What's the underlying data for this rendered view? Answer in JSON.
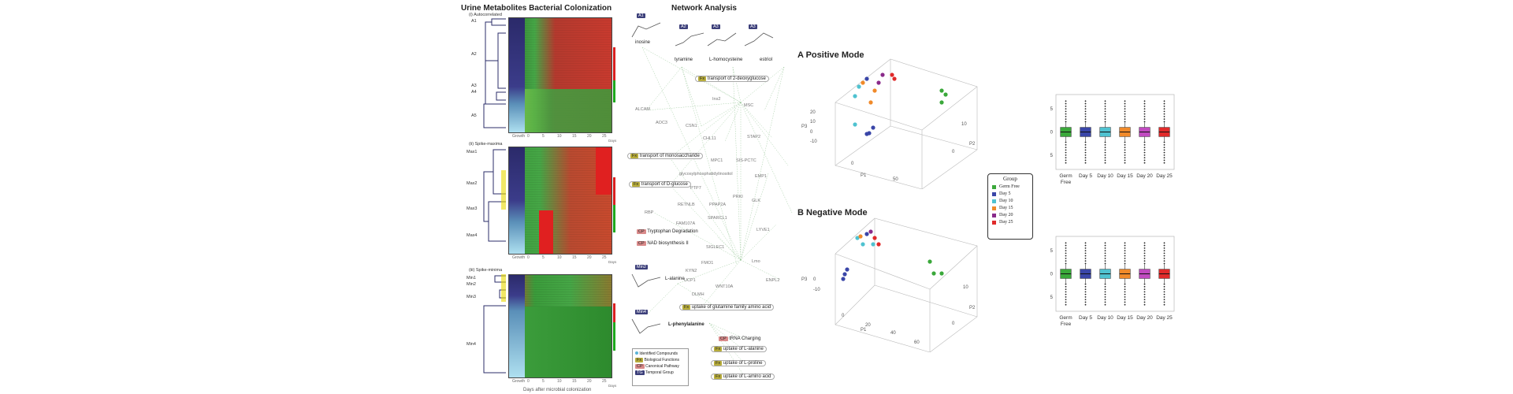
{
  "heatmap_panel": {
    "title": "Urine Metabolites Bacterial Colonization",
    "sections": [
      {
        "label": "(i) Autocorrelated",
        "clusters": [
          "A1",
          "A2",
          "A3",
          "A4",
          "A5"
        ]
      },
      {
        "label": "(ii) Spike-maxima",
        "clusters": [
          "Max1",
          "Max2",
          "Max3",
          "Max4"
        ]
      },
      {
        "label": "(iii) Spike-minima",
        "clusters": [
          "Min1",
          "Min2",
          "Min3",
          "Min4"
        ]
      }
    ],
    "x_ticks": [
      "Growth",
      "0",
      "5",
      "10",
      "15",
      "20",
      "25"
    ],
    "x_axis_end": "Days",
    "xlabel": "Days after microbial colonization"
  },
  "network_panel": {
    "title": "Network Analysis",
    "temporal_groups": [
      "A1",
      "A2",
      "A3",
      "A3"
    ],
    "metabolites": [
      "inosine",
      "tyramine",
      "L-homocysteine",
      "estriol",
      "L-alanine",
      "L-phenylalanine"
    ],
    "min_groups": [
      "Min2",
      "Min4"
    ],
    "functions": [
      "transport of 2-deoxyglucose",
      "transport of monosaccharide",
      "transport of D-glucose",
      "uptake of glutamine family amino acid",
      "uptake of L-alanine",
      "uptake of L-proline",
      "uptake of L-amino acid"
    ],
    "pathways": [
      "Tryptophan Degradation",
      "NAD biosynthesis II",
      "tRNA Charging"
    ],
    "genes": [
      "Ins2",
      "ALCAM",
      "AOC3",
      "CSN1",
      "MSC",
      "STAP2",
      "CHL11",
      "MPC1",
      "SIS-PCTC",
      "glycosylphosphatidylinositol",
      "PTP7",
      "EMP1",
      "RBP",
      "RETNLB",
      "PPAP2A",
      "PRKI",
      "GLK",
      "FAM107A",
      "SPARCL1",
      "LYVE1",
      "SIGLEC1",
      "FMO1",
      "Lmo",
      "KYN2",
      "UCP1",
      "ENPL2",
      "WNT10A",
      "DLMH"
    ],
    "fx_tag": "Fx",
    "cp_tag": "CP",
    "legend": [
      {
        "tag": "",
        "label": "Identified Compounds"
      },
      {
        "tag": "Fx",
        "label": "Biological Functions"
      },
      {
        "tag": "CP",
        "label": "Canonical Pathway"
      },
      {
        "tag": "TG",
        "label": "Temporal Group"
      }
    ]
  },
  "pca_panels": [
    {
      "title": "A Positive Mode",
      "axes": [
        "P1",
        "P2",
        "P3"
      ],
      "ticks_p1": [
        "0",
        "50"
      ],
      "ticks_p2": [
        "0",
        "10"
      ],
      "ticks_p3": [
        "20",
        "10",
        "0",
        "-10"
      ]
    },
    {
      "title": "B Negative Mode",
      "axes": [
        "P1",
        "P2",
        "P3"
      ],
      "ticks_p1": [
        "0",
        "20",
        "40",
        "60"
      ],
      "ticks_p2": [
        "0",
        "10"
      ],
      "ticks_p3": [
        "0",
        "-10"
      ]
    }
  ],
  "legend": {
    "title": "Group",
    "items": [
      {
        "label": "Germ Free",
        "color": "#3aa83a"
      },
      {
        "label": "Day 5",
        "color": "#3a46a8"
      },
      {
        "label": "Day 10",
        "color": "#4fc2d0"
      },
      {
        "label": "Day 15",
        "color": "#f08a2a"
      },
      {
        "label": "Day 20",
        "color": "#8a2a8a"
      },
      {
        "label": "Day 25",
        "color": "#e02a2a"
      }
    ]
  },
  "chart_data": [
    {
      "type": "box",
      "title": "",
      "categories": [
        "Germ Free",
        "Day 5",
        "Day 10",
        "Day 15",
        "Day 20",
        "Day 25"
      ],
      "yticks": [
        "5",
        "0",
        "5"
      ],
      "colors": [
        "#3aa83a",
        "#3a46a8",
        "#4fc2d0",
        "#f08a2a",
        "#c04ac0",
        "#e02a2a"
      ],
      "median": [
        0,
        0,
        0,
        0,
        0,
        0
      ],
      "q1": [
        -1,
        -1,
        -1,
        -1,
        -1,
        -1
      ],
      "q3": [
        1,
        1,
        1,
        1,
        1,
        1
      ]
    },
    {
      "type": "box",
      "title": "",
      "categories": [
        "Germ Free",
        "Day 5",
        "Day 10",
        "Day 15",
        "Day 20",
        "Day 25"
      ],
      "yticks": [
        "5",
        "0",
        "5"
      ],
      "colors": [
        "#3aa83a",
        "#3a46a8",
        "#4fc2d0",
        "#f08a2a",
        "#c04ac0",
        "#e02a2a"
      ],
      "median": [
        0,
        0,
        0,
        0,
        0,
        0
      ],
      "q1": [
        -1,
        -1,
        -1,
        -1,
        -1,
        -1
      ],
      "q3": [
        1,
        1,
        1,
        1,
        1,
        1
      ]
    }
  ]
}
